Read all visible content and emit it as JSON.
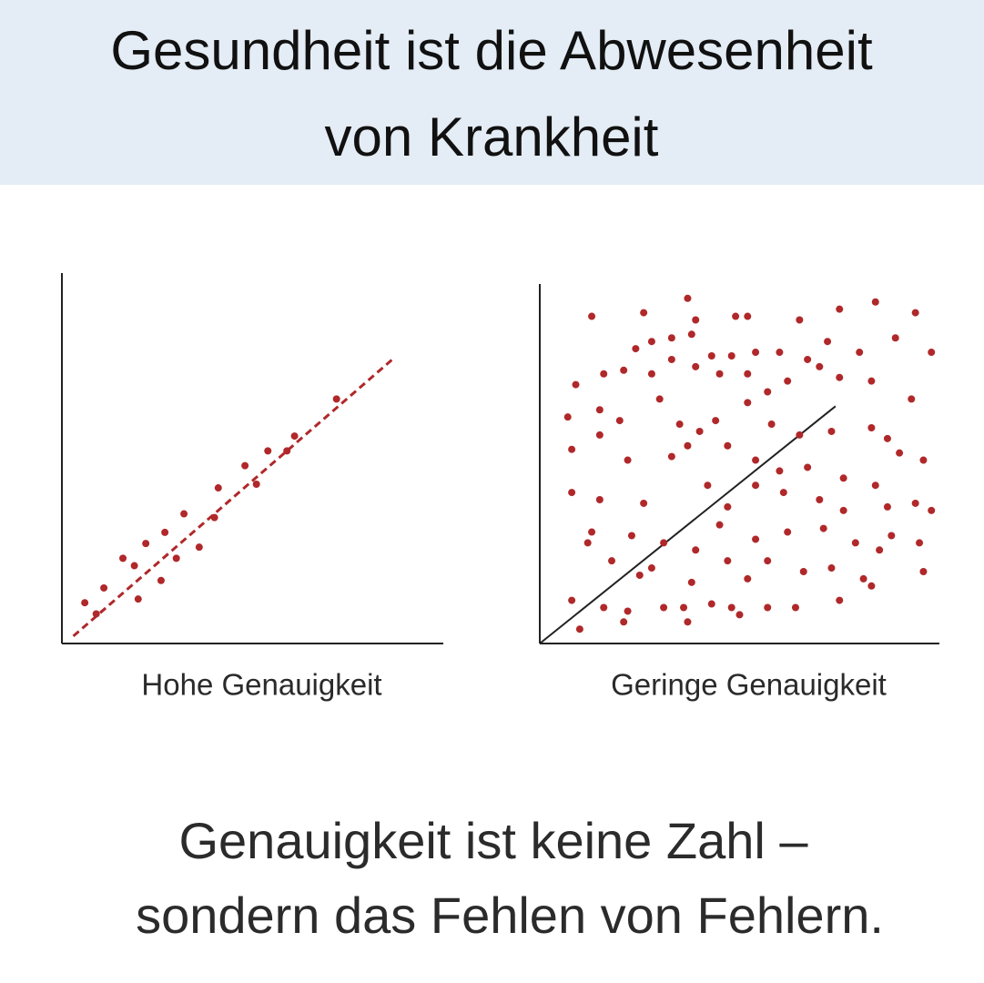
{
  "header": {
    "title_lines": [
      "Gesundheit ist die Abwesenheit",
      "von Krankheit"
    ]
  },
  "chart_data": [
    {
      "type": "scatter",
      "xlabel": "Hohe Genauigkeit",
      "color": "#b0282a",
      "xlim": [
        0,
        100
      ],
      "ylim": [
        0,
        100
      ],
      "x": [
        6,
        11,
        9,
        16,
        20,
        19,
        22,
        26,
        27,
        30,
        32,
        36,
        40,
        41,
        48,
        51,
        54,
        59,
        61,
        72
      ],
      "y": [
        11,
        15,
        8,
        23,
        12,
        21,
        27,
        17,
        30,
        23,
        35,
        26,
        34,
        42,
        48,
        43,
        52,
        52,
        56,
        66
      ],
      "trendline": {
        "x": [
          3,
          87
        ],
        "y": [
          2,
          77
        ],
        "color": "#b0282a",
        "dashed": true
      }
    },
    {
      "type": "scatter",
      "xlabel": "Geringe Genauigkeit",
      "color": "#b0282a",
      "xlim": [
        0,
        100
      ],
      "ylim": [
        0,
        100
      ],
      "x": [
        13,
        26,
        37,
        39,
        49,
        52,
        65,
        75,
        84,
        94,
        24,
        28,
        33,
        38,
        43,
        48,
        54,
        60,
        67,
        72,
        80,
        89,
        98,
        16,
        9,
        21,
        28,
        33,
        39,
        45,
        52,
        57,
        62,
        70,
        75,
        83,
        93,
        7,
        15,
        20,
        30,
        35,
        40,
        44,
        52,
        58,
        65,
        73,
        83,
        87,
        8,
        15,
        22,
        33,
        37,
        47,
        54,
        60,
        67,
        76,
        90,
        96,
        8,
        15,
        26,
        42,
        47,
        54,
        61,
        70,
        76,
        84,
        87,
        94,
        13,
        12,
        23,
        31,
        39,
        45,
        54,
        62,
        71,
        79,
        88,
        95,
        98,
        18,
        25,
        28,
        38,
        47,
        52,
        57,
        66,
        73,
        81,
        85,
        96,
        8,
        16,
        22,
        31,
        36,
        43,
        48,
        57,
        64,
        75,
        83,
        10,
        37,
        21,
        50
      ],
      "y": [
        91,
        92,
        96,
        90,
        91,
        91,
        90,
        93,
        95,
        92,
        82,
        84,
        85,
        86,
        80,
        80,
        81,
        81,
        79,
        84,
        81,
        85,
        81,
        75,
        72,
        76,
        75,
        79,
        77,
        75,
        75,
        70,
        73,
        77,
        74,
        73,
        68,
        63,
        65,
        62,
        68,
        61,
        59,
        62,
        67,
        61,
        58,
        59,
        60,
        57,
        54,
        58,
        51,
        52,
        55,
        55,
        51,
        48,
        49,
        46,
        53,
        51,
        42,
        40,
        39,
        44,
        38,
        44,
        42,
        40,
        37,
        44,
        38,
        39,
        31,
        28,
        30,
        28,
        26,
        33,
        29,
        31,
        32,
        28,
        30,
        28,
        37,
        23,
        19,
        21,
        17,
        23,
        18,
        23,
        20,
        21,
        18,
        26,
        20,
        12,
        10,
        9,
        10,
        10,
        11,
        10,
        10,
        10,
        12,
        16,
        4,
        6,
        6,
        8
      ],
      "trendline": {
        "x": [
          0,
          74
        ],
        "y": [
          0,
          66
        ],
        "color": "#222222",
        "dashed": false
      }
    }
  ],
  "footer": {
    "lines": [
      "Genauigkeit ist keine Zahl –",
      "sondern das Fehlen von Fehlern."
    ]
  }
}
